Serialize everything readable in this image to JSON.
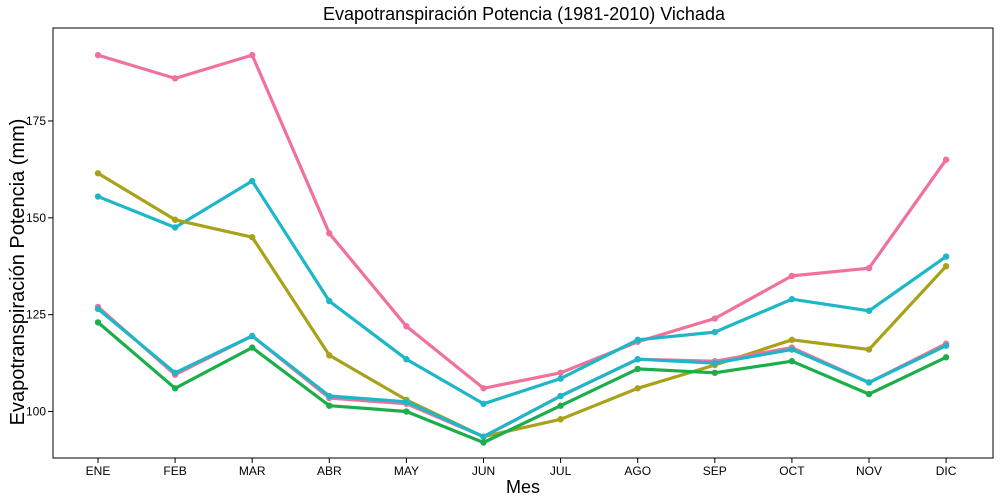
{
  "chart_data": {
    "type": "line",
    "title": "Evapotranspiración Potencia (1981-2010)  Vichada",
    "xlabel": "Mes",
    "ylabel": "Evapotranspiración Potencia  (mm)",
    "categories": [
      "ENE",
      "FEB",
      "MAR",
      "ABR",
      "MAY",
      "JUN",
      "JUL",
      "AGO",
      "SEP",
      "OCT",
      "NOV",
      "DIC"
    ],
    "ylim": [
      88,
      199
    ],
    "yticks": [
      100,
      125,
      150,
      175
    ],
    "grid": false,
    "legend": "none",
    "series": [
      {
        "color": "#F0729A",
        "values": [
          192,
          186,
          192,
          146,
          122,
          106,
          110,
          118,
          124,
          135,
          137,
          165
        ]
      },
      {
        "color": "#1DB7C8",
        "values": [
          155.5,
          147.5,
          159.5,
          128.5,
          113.5,
          102,
          108.5,
          118.5,
          120.5,
          129,
          126,
          140
        ]
      },
      {
        "color": "#A8A21A",
        "values": [
          161.5,
          149.5,
          145,
          114.5,
          103,
          93.5,
          98,
          106,
          112,
          118.5,
          116,
          137.5
        ]
      },
      {
        "color": "#F0729A",
        "values": [
          127,
          109.5,
          119.5,
          103.5,
          102,
          93.5,
          104,
          113.5,
          113,
          116.5,
          107.5,
          117.5
        ]
      },
      {
        "color": "#1DB7C8",
        "values": [
          126.5,
          110,
          119.5,
          104,
          102.5,
          93.5,
          104,
          113.5,
          112.5,
          116,
          107.5,
          117
        ]
      },
      {
        "color": "#1BAE4A",
        "values": [
          123,
          106,
          116.5,
          101.5,
          100,
          92,
          101.5,
          111,
          110,
          113,
          104.5,
          114
        ]
      }
    ]
  }
}
